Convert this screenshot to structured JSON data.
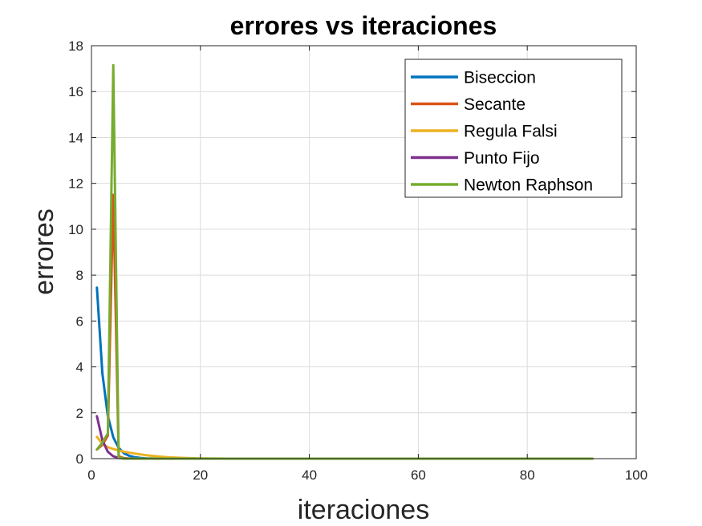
{
  "chart_data": {
    "type": "line",
    "title": "errores vs iteraciones",
    "xlabel": "iteraciones",
    "ylabel": "errores",
    "xlim": [
      0,
      100
    ],
    "ylim": [
      0,
      18
    ],
    "xticks": [
      0,
      20,
      40,
      60,
      80,
      100
    ],
    "yticks": [
      0,
      2,
      4,
      6,
      8,
      10,
      12,
      14,
      16,
      18
    ],
    "grid": true,
    "legend_position": "top-right",
    "series": [
      {
        "name": "Biseccion",
        "color": "#0072BD",
        "x": [
          1,
          2,
          3,
          4,
          5,
          6,
          7,
          8,
          9,
          10,
          12,
          15,
          20,
          25,
          30
        ],
        "y": [
          7.45,
          3.72,
          1.86,
          0.93,
          0.47,
          0.23,
          0.12,
          0.06,
          0.03,
          0.015,
          0.004,
          0.0005,
          0.0,
          0.0,
          0.0
        ]
      },
      {
        "name": "Secante",
        "color": "#D95319",
        "x": [
          1,
          2,
          3,
          4,
          5,
          6,
          7,
          8,
          10
        ],
        "y": [
          0.4,
          0.6,
          1.0,
          11.5,
          0.1,
          0.02,
          0.005,
          0.001,
          0.0
        ]
      },
      {
        "name": "Regula Falsi",
        "color": "#EDB120",
        "x": [
          1,
          2,
          3,
          4,
          5,
          6,
          8,
          10,
          12,
          14,
          16,
          18,
          20,
          25,
          30
        ],
        "y": [
          0.95,
          0.65,
          0.5,
          0.42,
          0.36,
          0.3,
          0.22,
          0.15,
          0.1,
          0.06,
          0.04,
          0.02,
          0.01,
          0.0,
          0.0
        ]
      },
      {
        "name": "Punto Fijo",
        "color": "#7E2F8E",
        "x": [
          1,
          2,
          3,
          4,
          5,
          6,
          8,
          10
        ],
        "y": [
          1.85,
          0.8,
          0.3,
          0.1,
          0.03,
          0.01,
          0.0,
          0.0
        ]
      },
      {
        "name": "Newton Raphson",
        "color": "#77AC30",
        "x": [
          1,
          2,
          3,
          4,
          5,
          6,
          8,
          10,
          20,
          40,
          60,
          80,
          92
        ],
        "y": [
          0.4,
          0.7,
          1.1,
          17.15,
          0.05,
          0.0,
          0.0,
          0.0,
          0.0,
          0.0,
          0.0,
          0.0,
          0.0
        ]
      }
    ]
  }
}
